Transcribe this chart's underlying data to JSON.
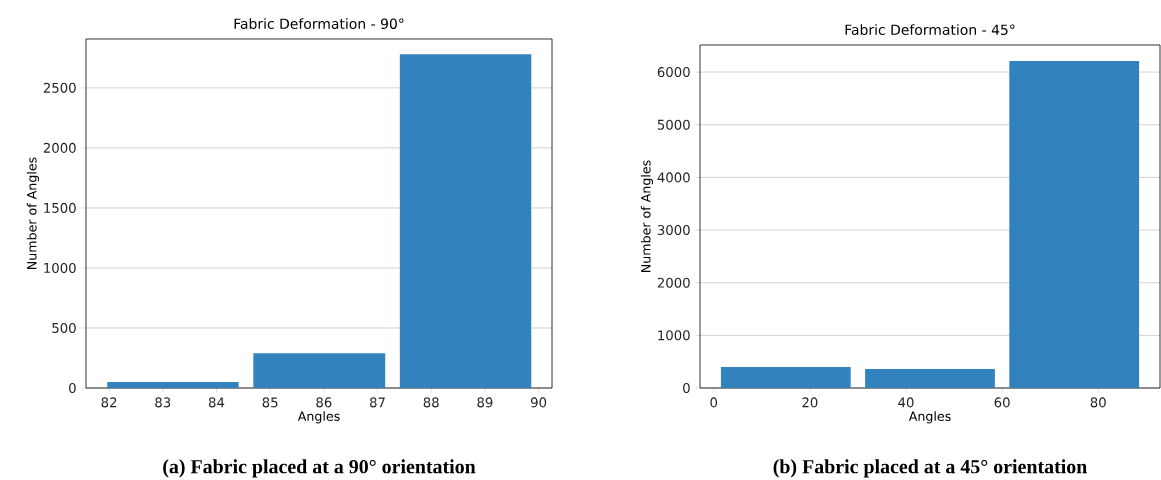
{
  "chart_data": [
    {
      "type": "histogram",
      "title": "Fabric Deformation - 90°",
      "xlabel": "Angles",
      "ylabel": "Number of Angles",
      "bins": [
        81.83,
        84.55,
        87.28,
        90
      ],
      "values": [
        50,
        290,
        2780
      ],
      "color": "#3282bd",
      "xlim": [
        81.57,
        90.25
      ],
      "xticks": [
        82,
        83,
        84,
        85,
        86,
        87,
        88,
        89,
        90
      ],
      "ylim": [
        0,
        2907
      ],
      "yticks": [
        0,
        500,
        1000,
        1500,
        2000,
        2500
      ],
      "grid": "y",
      "annotations": [
        "(a) Fabric placed at a 90° orientation"
      ]
    },
    {
      "type": "histogram",
      "title": "Fabric Deformation - 45°",
      "xlabel": "Angles",
      "ylabel": "Number of Angles",
      "bins": [
        0,
        30,
        60,
        90
      ],
      "values": [
        400,
        360,
        6210
      ],
      "color": "#3282bd",
      "xlim": [
        -2.85,
        92.85
      ],
      "xticks": [
        0,
        20,
        40,
        60,
        80
      ],
      "ylim": [
        0,
        6514
      ],
      "yticks": [
        0,
        1000,
        2000,
        3000,
        4000,
        5000,
        6000
      ],
      "grid": "y",
      "annotations": [
        "(b) Fabric placed at a 45° orientation"
      ]
    }
  ]
}
